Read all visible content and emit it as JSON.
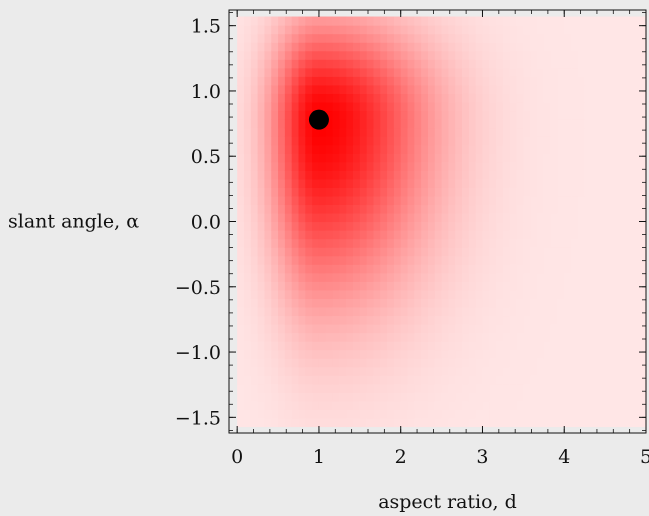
{
  "chart_data": {
    "type": "heatmap",
    "title": "",
    "xlabel": "aspect ratio, d",
    "ylabel": "slant angle, α",
    "xlim": [
      -0.1,
      5.0
    ],
    "ylim": [
      -1.62,
      1.62
    ],
    "heat_domain": {
      "x": [
        0.0,
        5.0
      ],
      "y": [
        -1.57,
        1.57
      ]
    },
    "x_ticks": [
      {
        "value": 0,
        "label": "0"
      },
      {
        "value": 1,
        "label": "1"
      },
      {
        "value": 2,
        "label": "2"
      },
      {
        "value": 3,
        "label": "3"
      },
      {
        "value": 4,
        "label": "4"
      },
      {
        "value": 5,
        "label": "5"
      }
    ],
    "y_ticks": [
      {
        "value": 1.5,
        "label": "1.5"
      },
      {
        "value": 1.0,
        "label": "1.0"
      },
      {
        "value": 0.5,
        "label": "0.5"
      },
      {
        "value": 0.0,
        "label": "0.0"
      },
      {
        "value": -0.5,
        "label": "−0.5"
      },
      {
        "value": -1.0,
        "label": "−1.0"
      },
      {
        "value": -1.5,
        "label": "−1.5"
      }
    ],
    "peak": {
      "x": 1.0,
      "y": 0.78
    },
    "color_scale": {
      "low": "#ffe6e6",
      "high": "#ff0000"
    },
    "marker_color": "#000000",
    "grid": false,
    "legend": "none"
  }
}
